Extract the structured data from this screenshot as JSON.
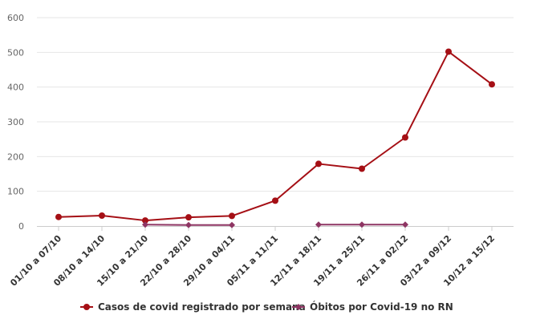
{
  "chart_data": {
    "type": "line",
    "title": "",
    "xlabel": "",
    "ylabel": "",
    "ylim": [
      0,
      600
    ],
    "yticks": [
      0,
      100,
      200,
      300,
      400,
      500,
      600
    ],
    "grid": true,
    "legend_position": "bottom",
    "categories": [
      "01/10 a 07/10",
      "08/10 a 14/10",
      "15/10 a 21/10",
      "22/10 a 28/10",
      "29/10 a 04/11",
      "05/11 a 11/11",
      "12/11 a 18/11",
      "19/11 a 25/11",
      "26/11 a 02/12",
      "03/12 a 09/12",
      "10/12 a 15/12"
    ],
    "series": [
      {
        "name": "Casos de covid registrado por semana",
        "color": "#a50f15",
        "marker": "circle",
        "values": [
          26,
          30,
          16,
          25,
          29,
          73,
          179,
          165,
          255,
          502,
          408
        ]
      },
      {
        "name": "Óbitos por Covid-19 no RN",
        "color": "#8e3563",
        "marker": "diamond",
        "values": [
          null,
          null,
          4,
          3,
          3,
          null,
          4,
          4,
          4,
          null,
          null
        ]
      }
    ]
  }
}
